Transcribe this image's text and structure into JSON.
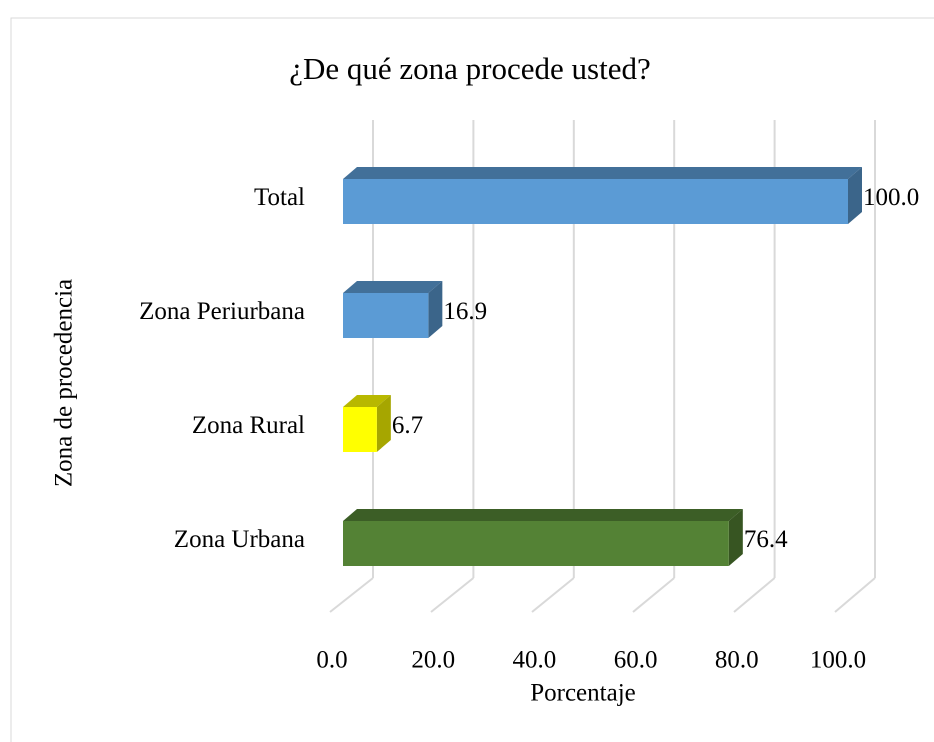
{
  "chart_data": {
    "type": "bar3d_horizontal",
    "title": "¿De qué zona procede usted?",
    "x_label": "Porcentaje",
    "y_label": "Zona de procedencia",
    "categories": [
      "Total",
      "Zona Periurbana",
      "Zona Rural",
      "Zona Urbana"
    ],
    "values": [
      100.0,
      16.9,
      6.7,
      76.4
    ],
    "value_labels": [
      "100.0",
      "16.9",
      "6.7",
      "76.4"
    ],
    "colors": [
      "#5b9bd5",
      "#5b9bd5",
      "#ffff00",
      "#548235"
    ],
    "xlim": [
      0,
      100
    ],
    "xticks": [
      {
        "value": 0,
        "label": "0.0"
      },
      {
        "value": 20,
        "label": "20.0"
      },
      {
        "value": 40,
        "label": "40.0"
      },
      {
        "value": 60,
        "label": "60.0"
      },
      {
        "value": 80,
        "label": "80.0"
      },
      {
        "value": 100,
        "label": "100.0"
      }
    ],
    "grid": true
  }
}
